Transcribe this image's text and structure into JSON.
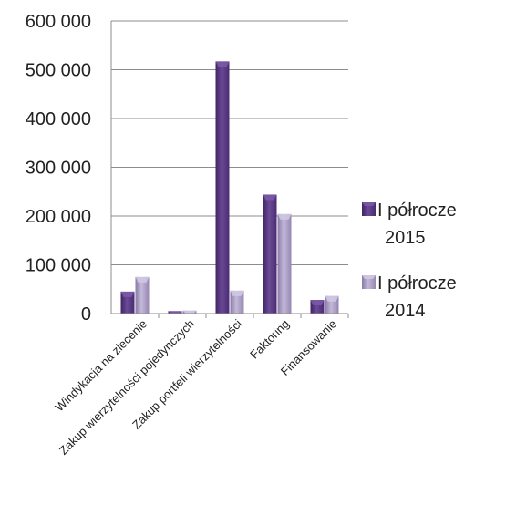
{
  "chart_data": {
    "type": "bar",
    "categories": [
      "Windykacja na zlecenie",
      "Zakup wierzytelności pojedynczych",
      "Zakup portfeli wierzytelności",
      "Faktoring",
      "Finansowanie"
    ],
    "series": [
      {
        "name": "I półrocze 2015",
        "name_lines": [
          "I półrocze",
          "2015"
        ],
        "values": [
          45000,
          5000,
          517000,
          244000,
          28000
        ],
        "color": "#5e3a86"
      },
      {
        "name": "I półrocze 2014",
        "name_lines": [
          "I półrocze",
          "2014"
        ],
        "values": [
          75000,
          6000,
          47000,
          204000,
          36000
        ],
        "color": "#a597c0"
      }
    ],
    "yticks": [
      "0",
      "100 000",
      "200 000",
      "300 000",
      "400 000",
      "500 000",
      "600 000"
    ],
    "ylim": [
      0,
      600000
    ],
    "grid": true,
    "legend": "right",
    "title": "",
    "xlabel": "",
    "ylabel": ""
  }
}
